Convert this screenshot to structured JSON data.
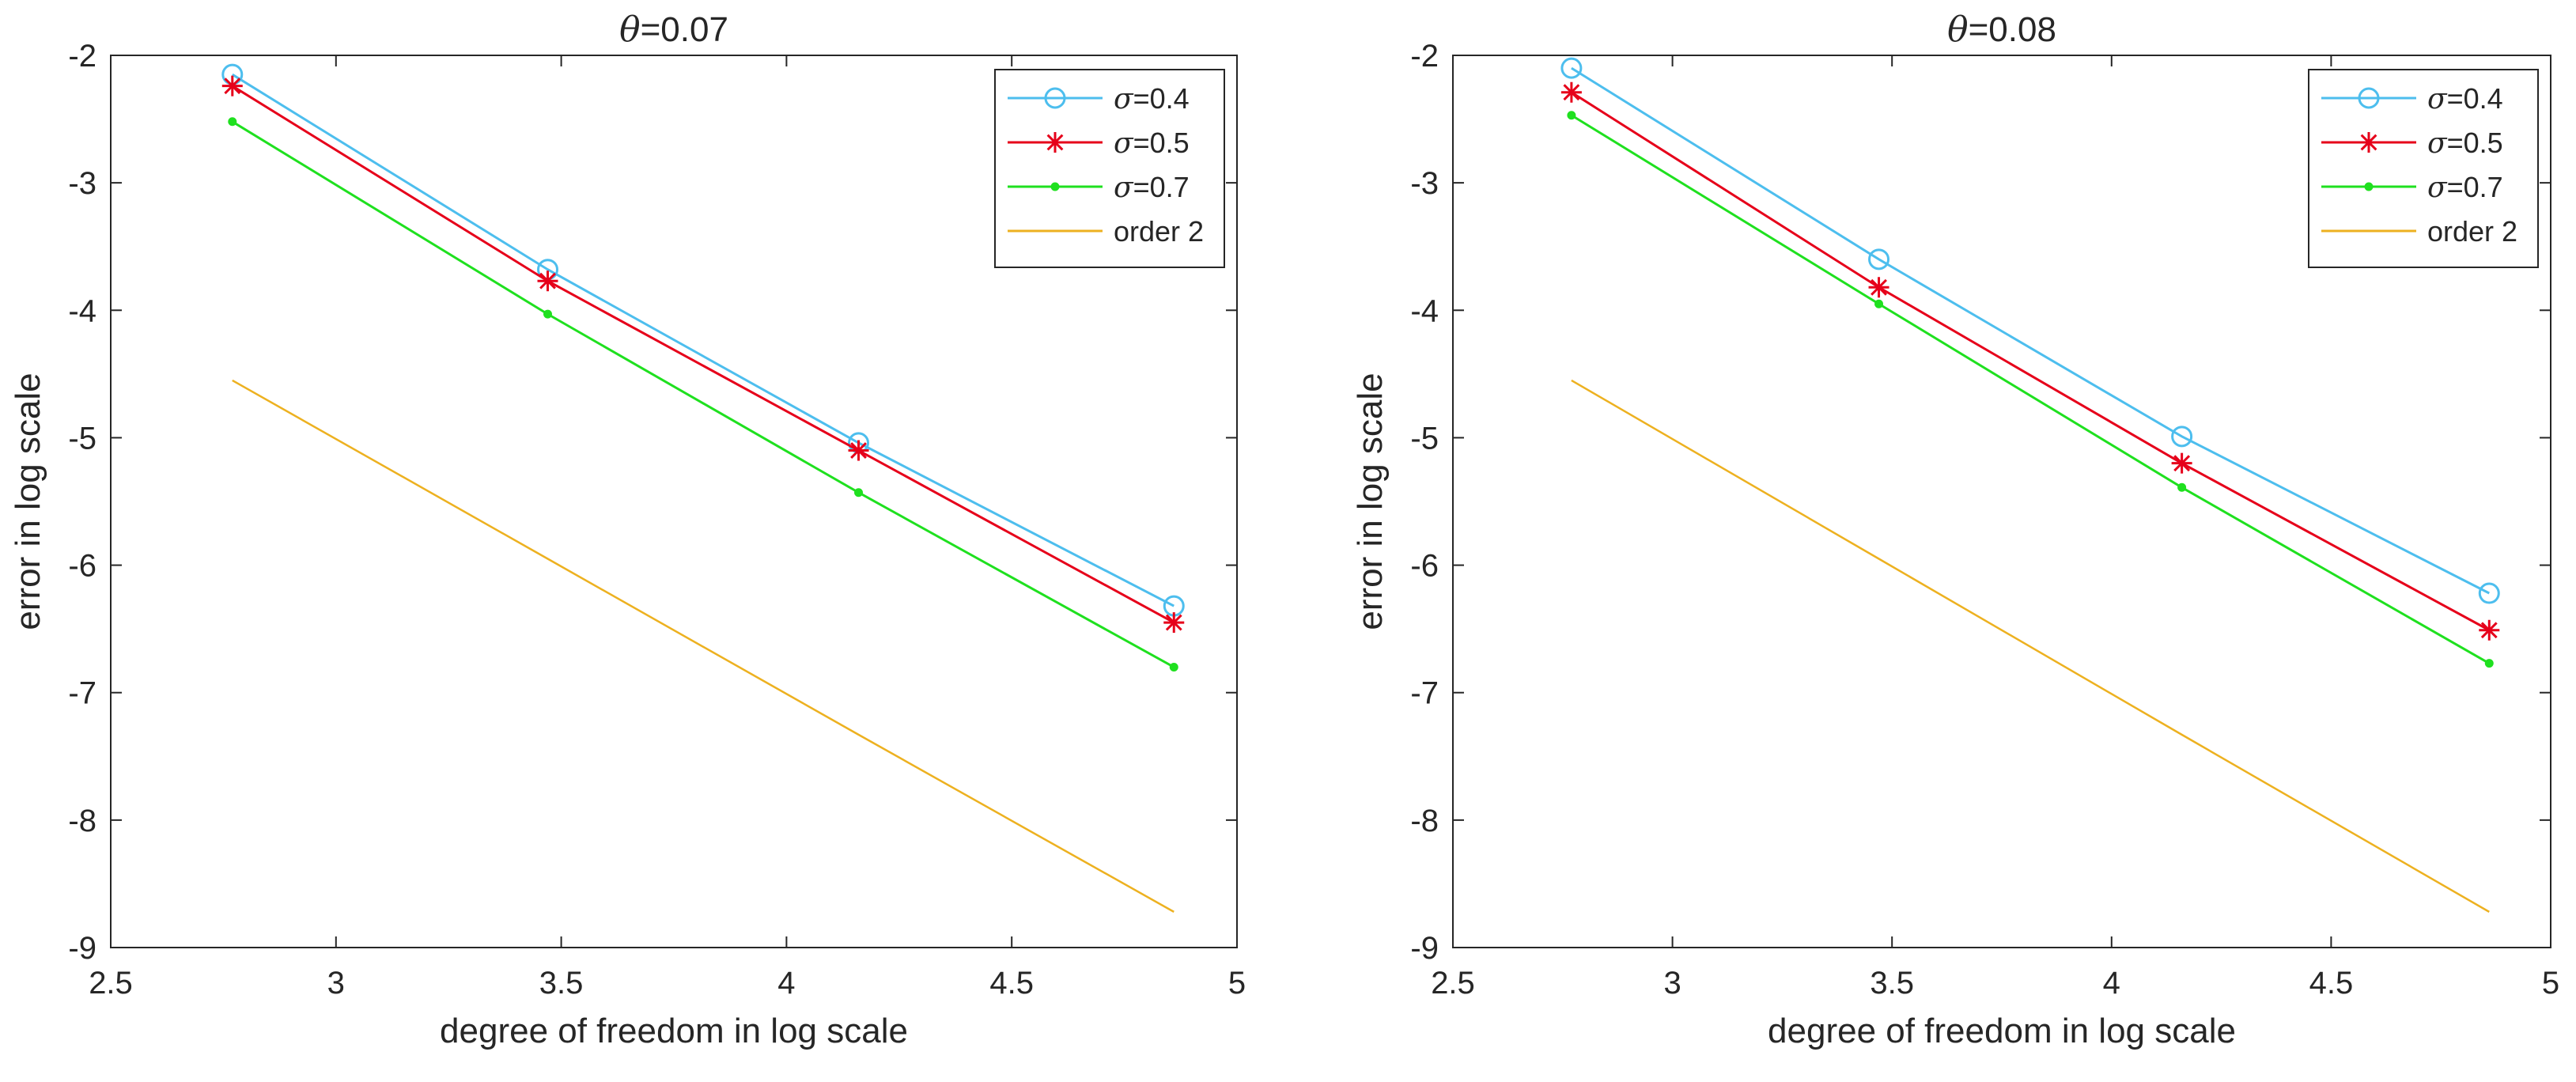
{
  "chart_data": [
    {
      "type": "line",
      "title": {
        "symbol": "θ",
        "text": "=0.07"
      },
      "xlabel": "degree of freedom in log scale",
      "ylabel": "error in log scale",
      "xlim": [
        2.5,
        5
      ],
      "ylim": [
        -9,
        -2
      ],
      "xticks": [
        2.5,
        3,
        3.5,
        4,
        4.5,
        5
      ],
      "xtick_labels": [
        "2.5",
        "3",
        "3.5",
        "4",
        "4.5",
        "5"
      ],
      "yticks": [
        -9,
        -8,
        -7,
        -6,
        -5,
        -4,
        -3,
        -2
      ],
      "ytick_labels": [
        "-9",
        "-8",
        "-7",
        "-6",
        "-5",
        "-4",
        "-3",
        "-2"
      ],
      "grid": false,
      "legend_position": "top-right",
      "x": [
        2.77,
        3.47,
        4.16,
        4.86
      ],
      "series": [
        {
          "name": "σ=0.4",
          "symbol": "σ",
          "text": "=0.4",
          "color": "#4DBEEE",
          "marker": "circle",
          "values": [
            -2.15,
            -3.68,
            -5.04,
            -6.32
          ]
        },
        {
          "name": "σ=0.5",
          "symbol": "σ",
          "text": "=0.5",
          "color": "#E6001A",
          "marker": "asterisk",
          "values": [
            -2.24,
            -3.77,
            -5.1,
            -6.45
          ]
        },
        {
          "name": "σ=0.7",
          "symbol": "σ",
          "text": "=0.7",
          "color": "#1FE01F",
          "marker": "dot",
          "values": [
            -2.52,
            -4.03,
            -5.43,
            -6.8
          ]
        },
        {
          "name": "order 2",
          "symbol": "",
          "text": "order 2",
          "color": "#EDB120",
          "marker": "none",
          "values": [
            -4.55,
            -5.95,
            -7.33,
            -8.72
          ]
        }
      ]
    },
    {
      "type": "line",
      "title": {
        "symbol": "θ",
        "text": "=0.08"
      },
      "xlabel": "degree of freedom in log scale",
      "ylabel": "error in log scale",
      "xlim": [
        2.5,
        5
      ],
      "ylim": [
        -9,
        -2
      ],
      "xticks": [
        2.5,
        3,
        3.5,
        4,
        4.5,
        5
      ],
      "xtick_labels": [
        "2.5",
        "3",
        "3.5",
        "4",
        "4.5",
        "5"
      ],
      "yticks": [
        -9,
        -8,
        -7,
        -6,
        -5,
        -4,
        -3,
        -2
      ],
      "ytick_labels": [
        "-9",
        "-8",
        "-7",
        "-6",
        "-5",
        "-4",
        "-3",
        "-2"
      ],
      "grid": false,
      "legend_position": "top-right",
      "x": [
        2.77,
        3.47,
        4.16,
        4.86
      ],
      "series": [
        {
          "name": "σ=0.4",
          "symbol": "σ",
          "text": "=0.4",
          "color": "#4DBEEE",
          "marker": "circle",
          "values": [
            -2.1,
            -3.6,
            -4.99,
            -6.22
          ]
        },
        {
          "name": "σ=0.5",
          "symbol": "σ",
          "text": "=0.5",
          "color": "#E6001A",
          "marker": "asterisk",
          "values": [
            -2.29,
            -3.82,
            -5.2,
            -6.51
          ]
        },
        {
          "name": "σ=0.7",
          "symbol": "σ",
          "text": "=0.7",
          "color": "#1FE01F",
          "marker": "dot",
          "values": [
            -2.47,
            -3.95,
            -5.39,
            -6.77
          ]
        },
        {
          "name": "order 2",
          "symbol": "",
          "text": "order 2",
          "color": "#EDB120",
          "marker": "none",
          "values": [
            -4.55,
            -5.95,
            -7.33,
            -8.72
          ]
        }
      ]
    }
  ]
}
